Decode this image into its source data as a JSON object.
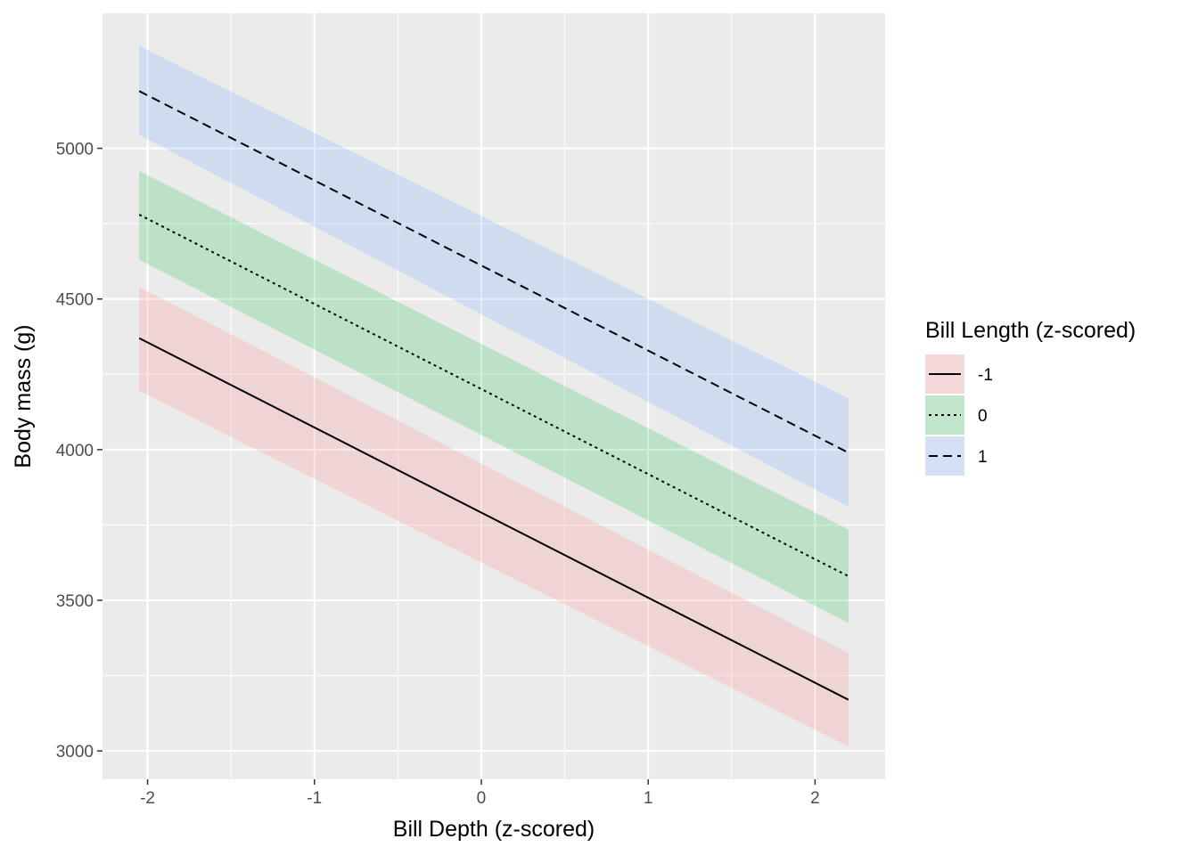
{
  "chart_data": {
    "type": "line",
    "xlabel": "Bill Depth (z-scored)",
    "ylabel": "Body mass (g)",
    "xlim": [
      -2.27,
      2.42
    ],
    "ylim": [
      2906,
      5448
    ],
    "x_ticks": [
      -2,
      -1,
      0,
      1,
      2
    ],
    "y_ticks": [
      3000,
      3500,
      4000,
      4500,
      5000
    ],
    "grid": true,
    "legend": {
      "title": "Bill Length (z-scored)",
      "position": "right"
    },
    "series": [
      {
        "name": "-1",
        "color": "#F8766D",
        "line_style": "solid",
        "x": [
          -2.05,
          2.2
        ],
        "y": [
          4370,
          3170
        ],
        "ci_lower": [
          4195,
          3015
        ],
        "ci_upper": [
          4540,
          3325
        ]
      },
      {
        "name": "0",
        "color": "#00BA38",
        "line_style": "dotted",
        "x": [
          -2.05,
          2.2
        ],
        "y": [
          4780,
          3580
        ],
        "ci_lower": [
          4630,
          3425
        ],
        "ci_upper": [
          4925,
          3735
        ]
      },
      {
        "name": "1",
        "color": "#619CFF",
        "line_style": "dashed",
        "x": [
          -2.05,
          2.2
        ],
        "y": [
          5190,
          3990
        ],
        "ci_lower": [
          5045,
          3810
        ],
        "ci_upper": [
          5340,
          4170
        ]
      }
    ]
  }
}
